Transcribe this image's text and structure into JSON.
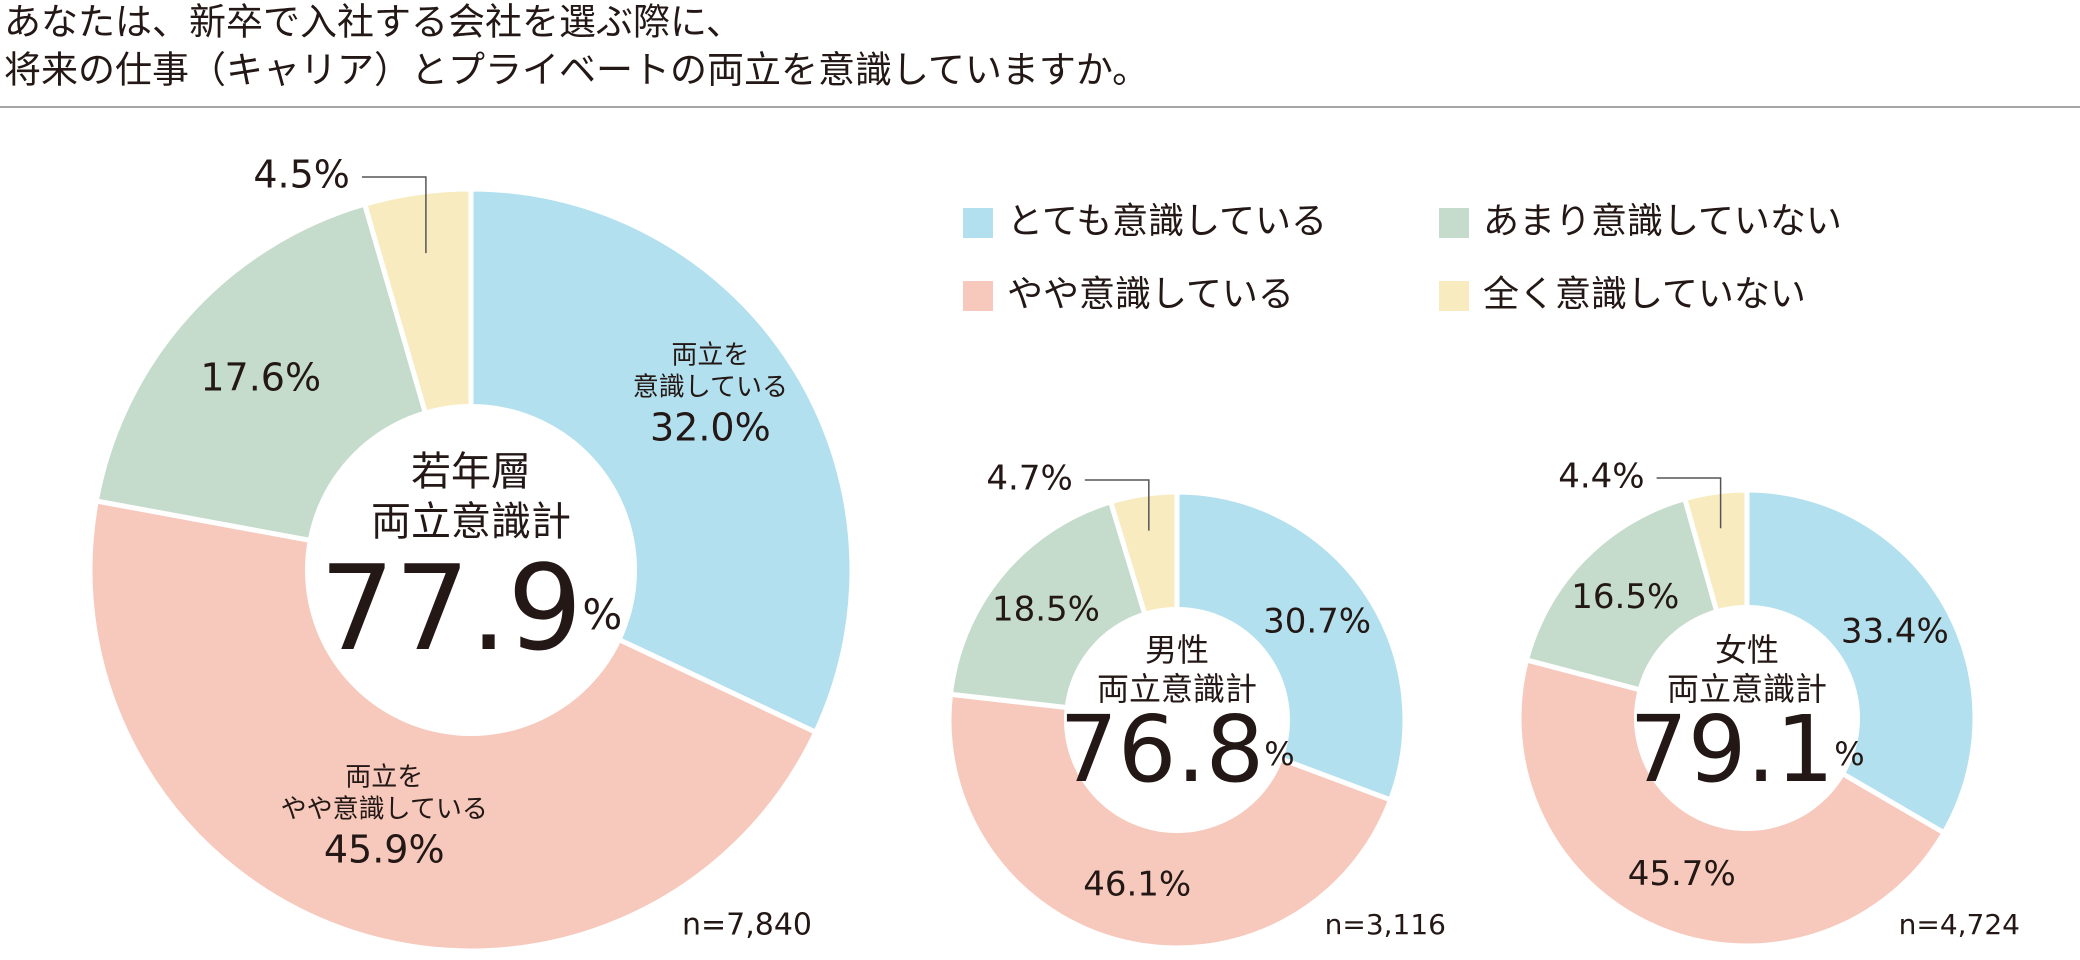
{
  "title": [
    "あなたは、新卒で入社する会社を選ぶ際に、",
    "将来の仕事（キャリア）とプライベートの両立を意識していますか。"
  ],
  "chart_data": [
    {
      "type": "pie",
      "center_label": [
        "若年層",
        "両立意識計"
      ],
      "total": 77.9,
      "total_unit": "%",
      "categories": [
        "とても意識している",
        "やや意識している",
        "あまり意識していない",
        "全く意識していない"
      ],
      "colors": [
        "#b3e0ee",
        "#f6c9bc",
        "#c5dccd",
        "#f8ebbf"
      ],
      "values": [
        32.0,
        45.9,
        17.6,
        4.5
      ],
      "value_labels": [
        "32.0%",
        "45.9%",
        "17.6%",
        "4.5%"
      ],
      "slice_notes": [
        [
          "両立を",
          "意識している"
        ],
        [
          "両立を",
          "やや意識している"
        ],
        null,
        null
      ],
      "sample": "n=7,840"
    },
    {
      "type": "pie",
      "center_label": [
        "男性",
        "両立意識計"
      ],
      "total": 76.8,
      "total_unit": "%",
      "categories": [
        "とても意識している",
        "やや意識している",
        "あまり意識していない",
        "全く意識していない"
      ],
      "colors": [
        "#b3e0ee",
        "#f6c9bc",
        "#c5dccd",
        "#f8ebbf"
      ],
      "values": [
        30.7,
        46.1,
        18.5,
        4.7
      ],
      "value_labels": [
        "30.7%",
        "46.1%",
        "18.5%",
        "4.7%"
      ],
      "sample": "n=3,116"
    },
    {
      "type": "pie",
      "center_label": [
        "女性",
        "両立意識計"
      ],
      "total": 79.1,
      "total_unit": "%",
      "categories": [
        "とても意識している",
        "やや意識している",
        "あまり意識していない",
        "全く意識していない"
      ],
      "colors": [
        "#b3e0ee",
        "#f6c9bc",
        "#c5dccd",
        "#f8ebbf"
      ],
      "values": [
        33.4,
        45.7,
        16.5,
        4.4
      ],
      "value_labels": [
        "33.4%",
        "45.7%",
        "16.5%",
        "4.4%"
      ],
      "sample": "n=4,724"
    }
  ]
}
